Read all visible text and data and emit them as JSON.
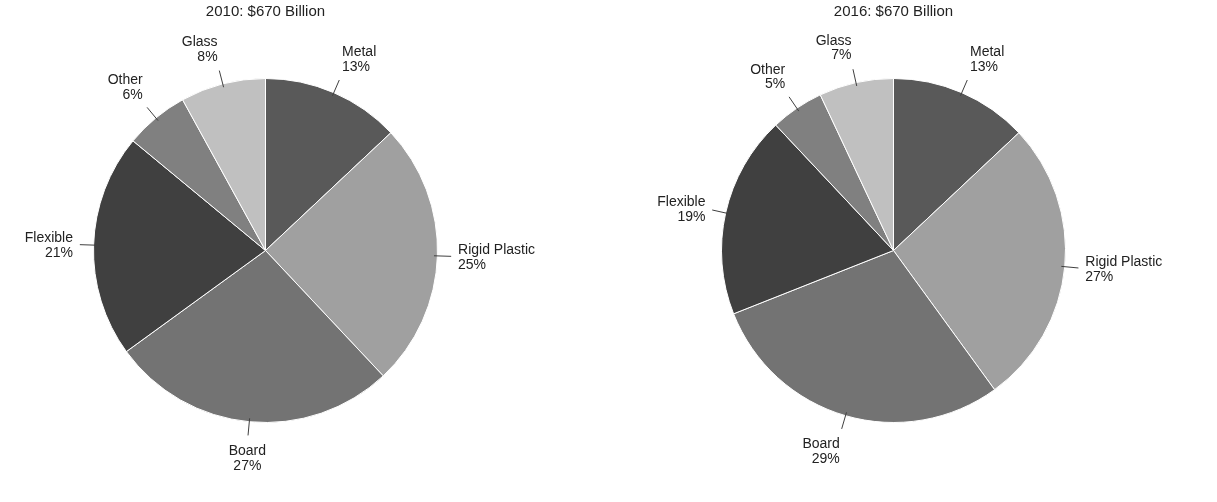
{
  "chart_data": [
    {
      "type": "pie",
      "title": "2010: $670 Billion",
      "categories": [
        "Metal",
        "Rigid Plastic",
        "Board",
        "Flexible",
        "Other",
        "Glass"
      ],
      "values": [
        13,
        25,
        27,
        21,
        6,
        8
      ],
      "value_labels": [
        "13%",
        "25%",
        "27%",
        "21%",
        "6%",
        "8%"
      ],
      "colors": [
        "#595959",
        "#a0a0a0",
        "#737373",
        "#404040",
        "#808080",
        "#c0c0c0"
      ]
    },
    {
      "type": "pie",
      "title": "2016: $670 Billion",
      "categories": [
        "Metal",
        "Rigid Plastic",
        "Board",
        "Flexible",
        "Other",
        "Glass"
      ],
      "values": [
        13,
        27,
        29,
        19,
        5,
        7
      ],
      "value_labels": [
        "13%",
        "27%",
        "29%",
        "19%",
        "5%",
        "7%"
      ],
      "colors": [
        "#595959",
        "#a0a0a0",
        "#737373",
        "#404040",
        "#808080",
        "#c0c0c0"
      ]
    }
  ]
}
